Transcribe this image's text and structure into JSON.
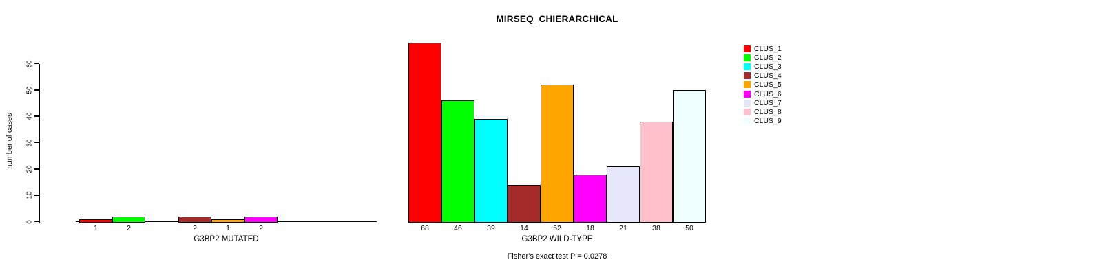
{
  "figure": {
    "title": "MIRSEQ_CHIERARCHICAL",
    "footnote": "Fisher's exact test P = 0.0278"
  },
  "chart_data": {
    "type": "bar",
    "title": "MIRSEQ_CHIERARCHICAL",
    "ylabel": "number of cases",
    "ylim": [
      0,
      60
    ],
    "yticks": [
      0,
      10,
      20,
      30,
      40,
      50,
      60
    ],
    "grid": false,
    "legend_position": "right",
    "clusters": [
      "CLUS_1",
      "CLUS_2",
      "CLUS_3",
      "CLUS_4",
      "CLUS_5",
      "CLUS_6",
      "CLUS_7",
      "CLUS_8",
      "CLUS_9"
    ],
    "colors": [
      "#FF0000",
      "#00FF00",
      "#00FFFF",
      "#A52A2A",
      "#FFA500",
      "#FF00FF",
      "#E6E6FA",
      "#FFC0CB",
      "#F0FFFF"
    ],
    "panels": [
      {
        "xlabel": "G3BP2 MUTATED",
        "values": [
          1,
          2,
          0,
          2,
          1,
          2,
          0,
          0,
          0
        ],
        "bar_labels": [
          "1",
          "2",
          "",
          "2",
          "1",
          "2",
          "",
          "",
          ""
        ]
      },
      {
        "xlabel": "G3BP2 WILD-TYPE",
        "values": [
          68,
          46,
          39,
          14,
          52,
          18,
          21,
          38,
          50
        ],
        "bar_labels": [
          "68",
          "46",
          "39",
          "14",
          "52",
          "18",
          "21",
          "38",
          "50"
        ]
      }
    ],
    "footnote": "Fisher's exact test P = 0.0278"
  }
}
